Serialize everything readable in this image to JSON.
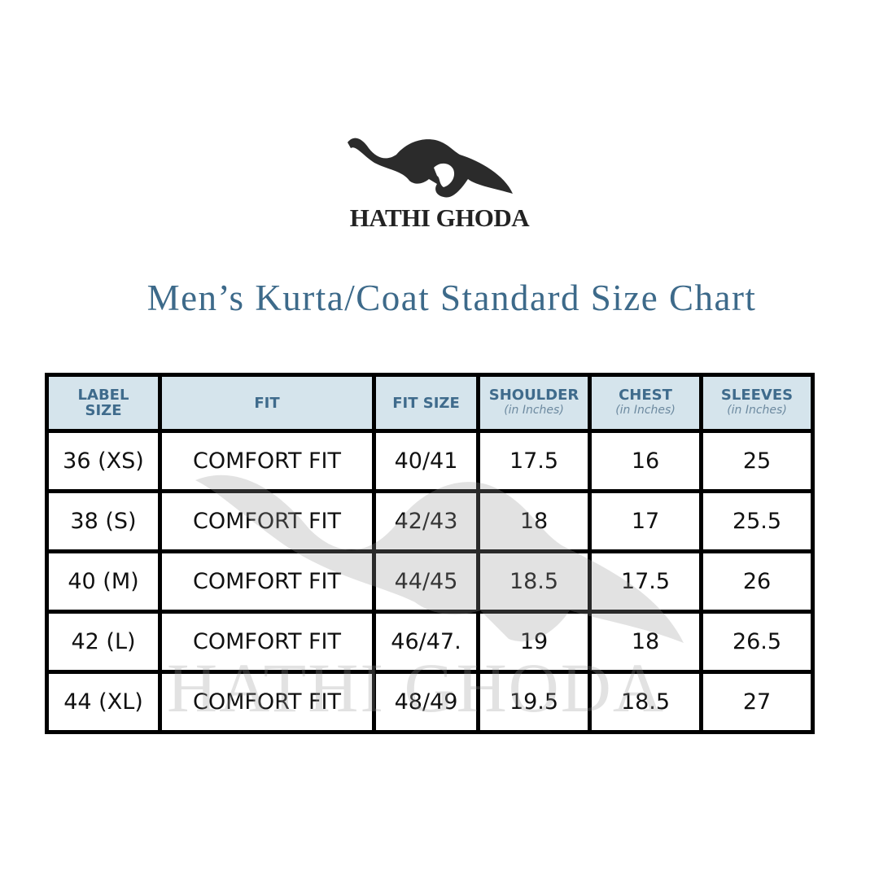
{
  "brand": {
    "name": "HATHI GHODA",
    "logo_icon": "elephant-horse-logo"
  },
  "title": "Men’s Kurta/Coat Standard Size Chart",
  "watermark": "HATHI GHODA",
  "colors": {
    "header_bg": "#d5e4ec",
    "header_text": "#3f6b8c",
    "title": "#3d6a8a",
    "border": "#000000"
  },
  "table": {
    "headers": [
      {
        "label": "LABEL SIZE",
        "sub": ""
      },
      {
        "label": "FIT",
        "sub": ""
      },
      {
        "label": "FIT SIZE",
        "sub": ""
      },
      {
        "label": "SHOULDER",
        "sub": "(in Inches)"
      },
      {
        "label": "CHEST",
        "sub": "(in Inches)"
      },
      {
        "label": "SLEEVES",
        "sub": "(in Inches)"
      }
    ],
    "rows": [
      [
        "36 (XS)",
        "COMFORT FIT",
        "40/41",
        "17.5",
        "16",
        "25"
      ],
      [
        "38 (S)",
        "COMFORT FIT",
        "42/43",
        "18",
        "17",
        "25.5"
      ],
      [
        "40 (M)",
        "COMFORT FIT",
        "44/45",
        "18.5",
        "17.5",
        "26"
      ],
      [
        "42 (L)",
        "COMFORT FIT",
        "46/47.",
        "19",
        "18",
        "26.5"
      ],
      [
        "44 (XL)",
        "COMFORT FIT",
        "48/49",
        "19.5",
        "18.5",
        "27"
      ]
    ]
  }
}
